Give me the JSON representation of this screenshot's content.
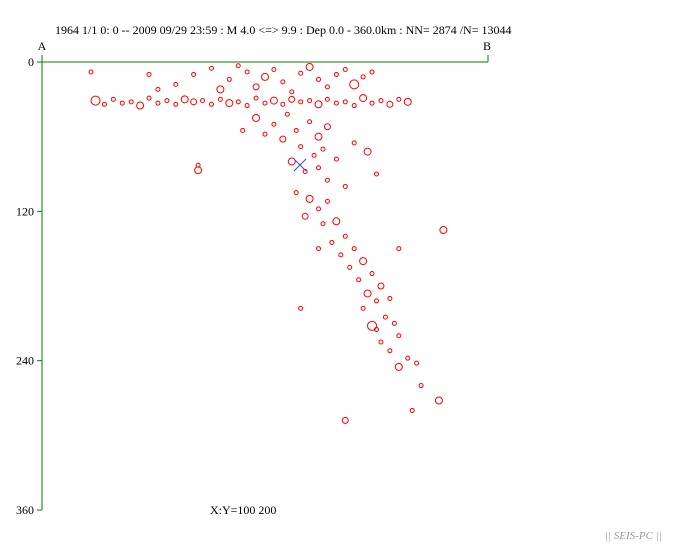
{
  "chart_data": {
    "type": "scatter",
    "title": "1964 1/1 0: 0 -- 2009 09/29 23:59 :  M 4.0 <=> 9.9   :  Dep 0.0 - 360.0km :  NN= 2874 /N= 13044",
    "start_label": "A",
    "end_label": "B",
    "aspect_note": "X:Y=100 200",
    "footer": "|| SEIS-PC ||",
    "color": "#ff0000",
    "axis_color": "#008000",
    "xlim": [
      0,
      100
    ],
    "ylim": [
      0,
      360
    ],
    "y_reversed": true,
    "yticks": [
      0,
      120,
      240,
      360
    ],
    "x": [
      12,
      14,
      16,
      18,
      20,
      22,
      24,
      26,
      28,
      30,
      32,
      34,
      36,
      38,
      40,
      42,
      44,
      46,
      48,
      50,
      52,
      54,
      56,
      58,
      60,
      62,
      64,
      66,
      68,
      70,
      72,
      74,
      76,
      78,
      80,
      82,
      11,
      30,
      34,
      38,
      40,
      42,
      44,
      46,
      48,
      50,
      52,
      54,
      56,
      58,
      60,
      62,
      64,
      66,
      68,
      70,
      72,
      26,
      24,
      74,
      48,
      52,
      55,
      57,
      60,
      62,
      64,
      58,
      61,
      63,
      56,
      59,
      62,
      66,
      70,
      73,
      75,
      54,
      50,
      35,
      35,
      45,
      68,
      64,
      57,
      60,
      62,
      64,
      59,
      63,
      66,
      68,
      65,
      70,
      67,
      72,
      69,
      74,
      71,
      76,
      73,
      75,
      78,
      72,
      58,
      90,
      80,
      62,
      77,
      79,
      74,
      80,
      76,
      78,
      82,
      80,
      84,
      75,
      85,
      83,
      89,
      68
    ],
    "values": [
      31,
      34,
      30,
      33,
      32,
      35,
      29,
      33,
      31,
      34,
      30,
      32,
      31,
      34,
      30,
      33,
      32,
      35,
      29,
      33,
      31,
      34,
      30,
      32,
      31,
      34,
      30,
      33,
      32,
      35,
      29,
      33,
      31,
      34,
      30,
      32,
      8,
      18,
      10,
      5,
      22,
      14,
      3,
      8,
      20,
      12,
      6,
      16,
      24,
      9,
      4,
      14,
      20,
      10,
      6,
      18,
      12,
      22,
      10,
      8,
      45,
      50,
      42,
      55,
      48,
      60,
      52,
      68,
      75,
      70,
      80,
      88,
      85,
      78,
      65,
      72,
      90,
      62,
      58,
      83,
      87,
      55,
      100,
      95,
      105,
      110,
      118,
      112,
      124,
      130,
      128,
      140,
      145,
      150,
      155,
      160,
      165,
      170,
      175,
      180,
      186,
      192,
      190,
      198,
      198,
      135,
      150,
      150,
      205,
      210,
      212,
      220,
      225,
      232,
      238,
      245,
      242,
      215,
      260,
      280,
      272,
      288
    ]
  }
}
